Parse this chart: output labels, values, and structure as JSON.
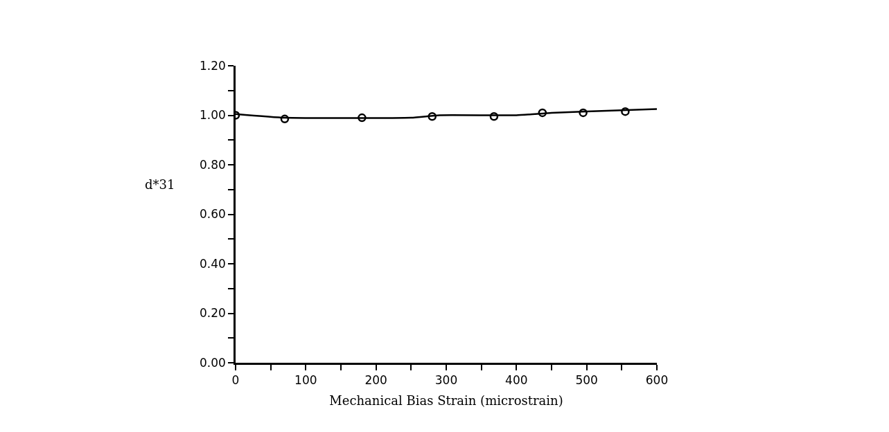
{
  "chart_data": {
    "type": "scatter",
    "xlabel": "Mechanical Bias Strain (microstrain)",
    "ylabel": "d*31",
    "xlim": [
      0,
      600
    ],
    "ylim": [
      0,
      1.2
    ],
    "xticks": [
      0,
      {
        "value": 50,
        "label": null
      },
      100,
      {
        "value": 150,
        "label": null
      },
      200,
      {
        "value": 250,
        "label": null
      },
      300,
      {
        "value": 350,
        "label": null
      },
      400,
      {
        "value": 450,
        "label": null
      },
      500,
      {
        "value": 550,
        "label": null
      },
      600
    ],
    "yticks": [
      {
        "value": 0,
        "label": "0.00"
      },
      {
        "value": 0.1,
        "label": null
      },
      {
        "value": 0.2,
        "label": "0.20"
      },
      {
        "value": 0.3,
        "label": null
      },
      {
        "value": 0.4,
        "label": "0.40"
      },
      {
        "value": 0.5,
        "label": null
      },
      {
        "value": 0.6,
        "label": "0.60"
      },
      {
        "value": 0.7,
        "label": null
      },
      {
        "value": 0.8,
        "label": "0.80"
      },
      {
        "value": 0.9,
        "label": null
      },
      {
        "value": 1.0,
        "label": "1.00"
      },
      {
        "value": 1.1,
        "label": null
      },
      {
        "value": 1.2,
        "label": "1.20"
      }
    ],
    "series": [
      {
        "marker": "circle",
        "color": "#000000",
        "x": [
          0,
          70,
          180,
          280,
          368,
          437,
          495,
          555
        ],
        "values": [
          1.0,
          0.985,
          0.99,
          0.995,
          0.995,
          1.01,
          1.01,
          1.015
        ]
      },
      {
        "type": "line",
        "marker": "none",
        "line_style": "solid",
        "color": "#000000",
        "x": [
          0,
          70,
          250,
          290,
          400,
          450,
          550,
          600
        ],
        "values": [
          1.005,
          0.99,
          0.99,
          1.0,
          1.0,
          1.01,
          1.02,
          1.025
        ]
      }
    ]
  }
}
